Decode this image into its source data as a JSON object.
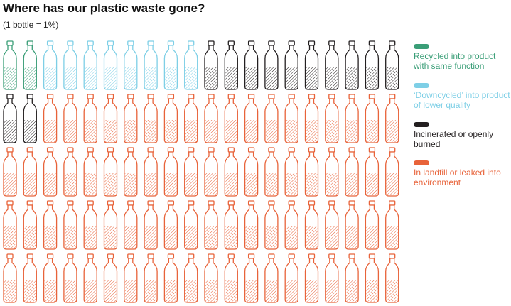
{
  "chart_data": {
    "type": "pictogram",
    "title": "Where has our plastic waste gone?",
    "subtitle": "(1 bottle = 1%)",
    "categories": [
      "Recycled into product with same function",
      "‘Downcycled’ into product of lower quality",
      "Incinerated or openly burned",
      "In landfill or leaked into environment"
    ],
    "values": [
      2,
      8,
      12,
      78
    ],
    "colors": [
      "#3a9e77",
      "#7ecfe6",
      "#231f20",
      "#e8633a"
    ]
  }
}
